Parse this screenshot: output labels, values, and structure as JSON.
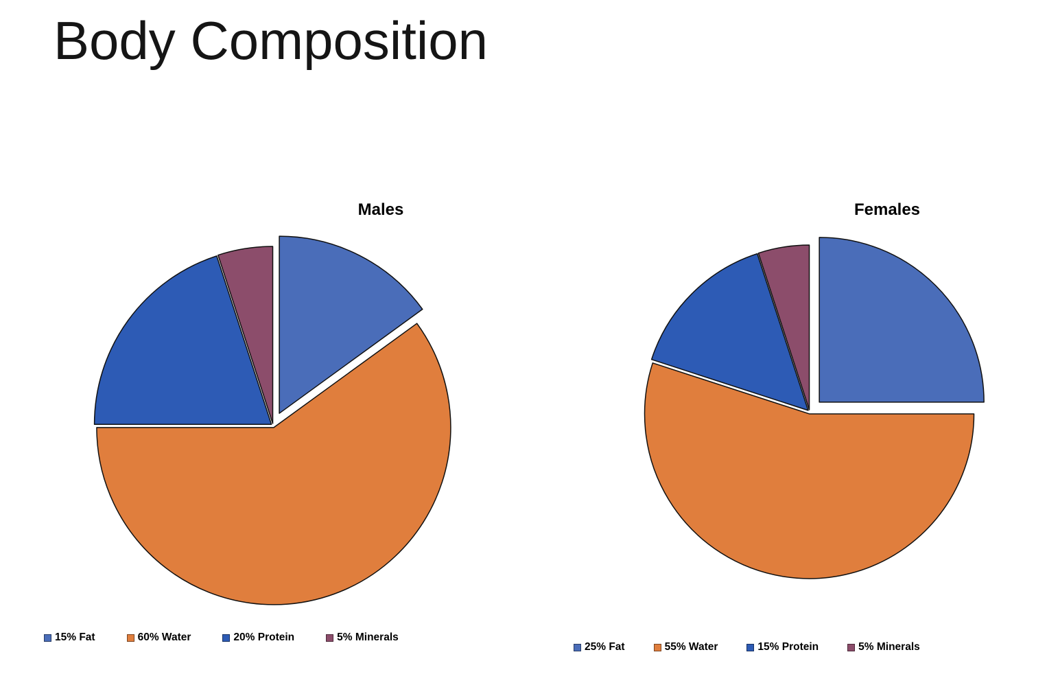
{
  "title": "Body Composition",
  "background_color": "#ffffff",
  "chart_data": [
    {
      "type": "pie",
      "title": "Males",
      "labels": [
        "15% Fat",
        "60% Water",
        "20% Protein",
        "5% Minerals"
      ],
      "values": [
        15,
        60,
        20,
        5
      ],
      "colors": [
        "#4a6db9",
        "#e07e3d",
        "#2d5bb5",
        "#8c4d6b"
      ],
      "exploded_slice": "15% Fat",
      "start_angle_deg": 0,
      "direction": "clockwise",
      "legend_position": "bottom",
      "outline_color": "#101010"
    },
    {
      "type": "pie",
      "title": "Females",
      "labels": [
        "25% Fat",
        "55% Water",
        "15% Protein",
        "5% Minerals"
      ],
      "values": [
        25,
        55,
        15,
        5
      ],
      "colors": [
        "#4a6db9",
        "#e07e3d",
        "#2d5bb5",
        "#8c4d6b"
      ],
      "exploded_slice": "25% Fat",
      "start_angle_deg": 0,
      "direction": "clockwise",
      "legend_position": "bottom",
      "outline_color": "#101010"
    }
  ]
}
